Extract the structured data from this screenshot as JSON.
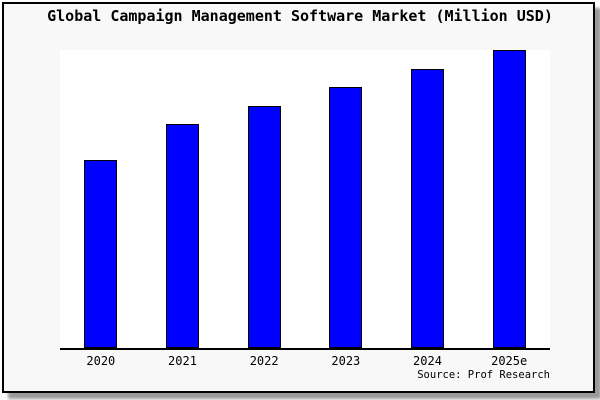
{
  "page": {
    "background_color": "#ffffff",
    "frame_background": "#f8f8f8",
    "frame_border_color": "#000000",
    "shadow_color": "#9a9a9a"
  },
  "chart_data": {
    "type": "bar",
    "title": "Global Campaign Management Software Market (Million USD)",
    "categories": [
      "2020",
      "2021",
      "2022",
      "2023",
      "2024",
      "2025e"
    ],
    "values": [
      189,
      225,
      244,
      263,
      281,
      300
    ],
    "values_note": "y-axis has no ticks or labels in the image; values are relative bar heights in pixels, tallest bar (2025e) touches plot top",
    "values_relative_to_2025e": [
      0.63,
      0.75,
      0.81,
      0.88,
      0.94,
      1.0
    ],
    "ylim": [
      0,
      300
    ],
    "xlabel": "",
    "ylabel": "",
    "grid": false,
    "legend": "none",
    "bar_color": "#0000ff",
    "bar_border_color": "#000000",
    "axis_color": "#000000",
    "plot_background": "#ffffff",
    "source_label": "Source: Prof Research"
  }
}
